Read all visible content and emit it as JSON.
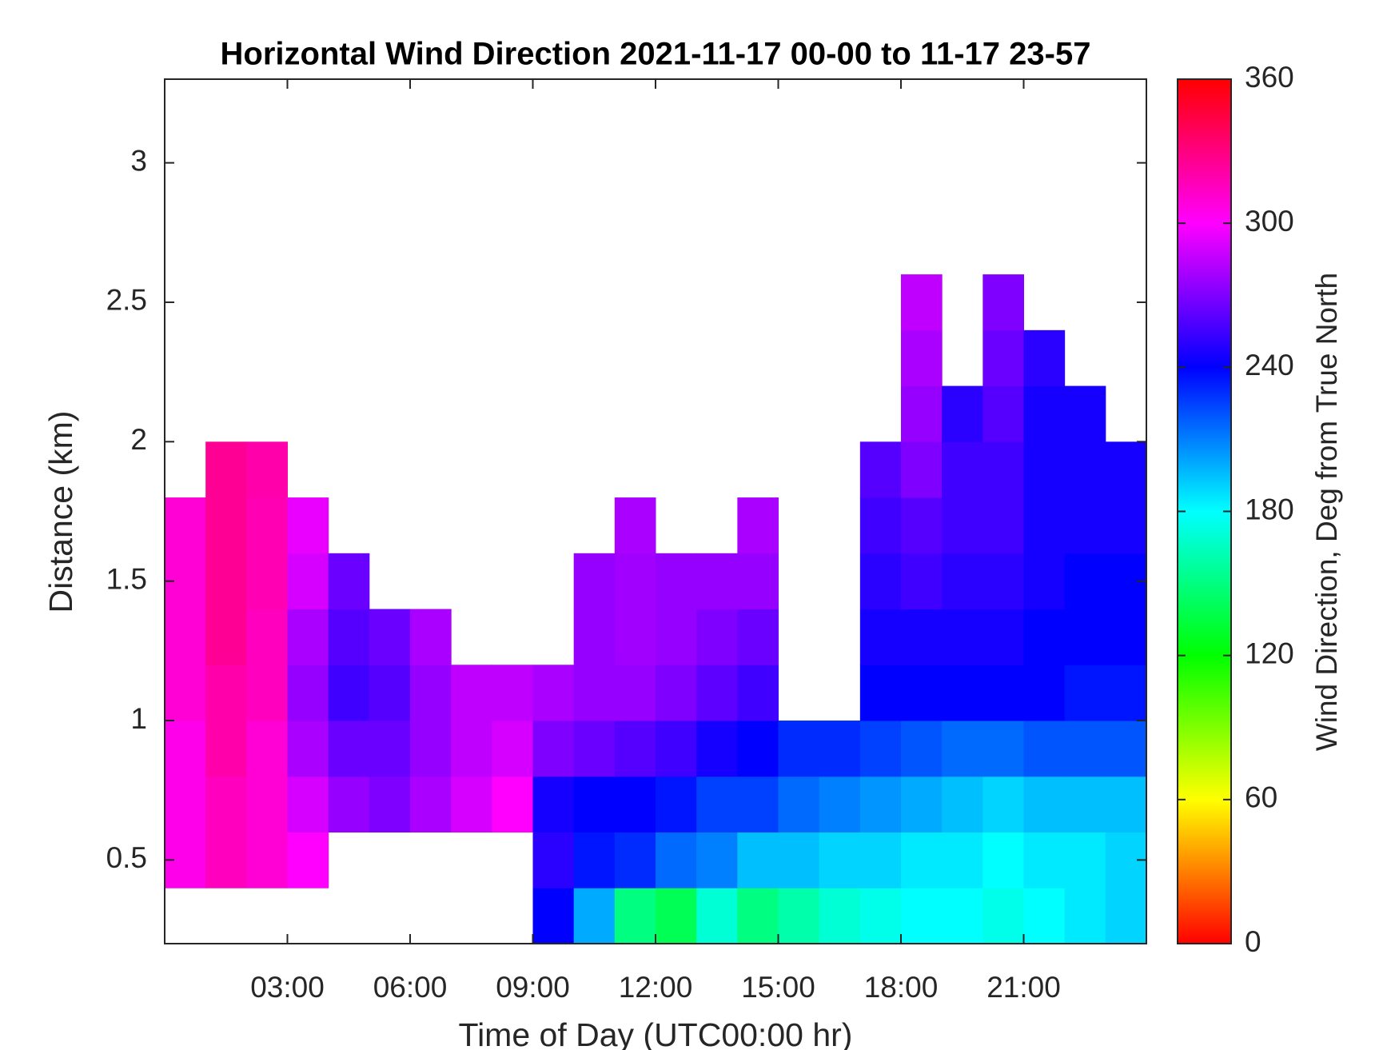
{
  "chart_data": {
    "type": "heatmap",
    "title": "Horizontal Wind Direction 2021-11-17 00-00 to 11-17 23-57",
    "xlabel": "Time of Day (UTC00:00 hr)",
    "ylabel": "Distance (km)",
    "colorbar_label": "Wind Direction, Deg from True North",
    "colormap": "hsv",
    "xlim": [
      0,
      24
    ],
    "xticks": [
      {
        "value": 3,
        "label": "03:00"
      },
      {
        "value": 6,
        "label": "06:00"
      },
      {
        "value": 9,
        "label": "09:00"
      },
      {
        "value": 12,
        "label": "12:00"
      },
      {
        "value": 15,
        "label": "15:00"
      },
      {
        "value": 18,
        "label": "18:00"
      },
      {
        "value": 21,
        "label": "21:00"
      }
    ],
    "ylim": [
      0.2,
      3.3
    ],
    "yticks": [
      0.5,
      1,
      1.5,
      2,
      2.5,
      3
    ],
    "clim": [
      0,
      360
    ],
    "cticks": [
      0,
      60,
      120,
      180,
      240,
      300,
      360
    ],
    "xbins": [
      0,
      1,
      2,
      3,
      4,
      5,
      6,
      7,
      8,
      9,
      10,
      11,
      12,
      13,
      14,
      15,
      16,
      17,
      18,
      19,
      20,
      21,
      22,
      23,
      24
    ],
    "ybins": [
      0.2,
      0.4,
      0.6,
      0.8,
      1.0,
      1.2,
      1.4,
      1.6,
      1.8,
      2.0,
      2.2,
      2.4,
      2.6
    ],
    "z": [
      [
        null,
        null,
        null,
        null,
        null,
        null,
        null,
        null,
        null,
        240,
        200,
        150,
        140,
        170,
        150,
        160,
        170,
        175,
        180,
        180,
        175,
        180,
        185,
        190
      ],
      [
        305,
        315,
        310,
        300,
        null,
        null,
        null,
        null,
        null,
        250,
        235,
        230,
        215,
        210,
        195,
        195,
        190,
        190,
        185,
        185,
        180,
        185,
        185,
        190
      ],
      [
        305,
        315,
        310,
        290,
        275,
        270,
        280,
        290,
        300,
        245,
        240,
        240,
        235,
        225,
        225,
        215,
        210,
        205,
        200,
        195,
        190,
        195,
        195,
        195
      ],
      [
        305,
        320,
        310,
        280,
        265,
        265,
        275,
        285,
        290,
        270,
        265,
        260,
        255,
        245,
        240,
        230,
        230,
        225,
        220,
        215,
        215,
        220,
        220,
        220
      ],
      [
        310,
        320,
        315,
        275,
        255,
        260,
        275,
        285,
        285,
        280,
        275,
        275,
        270,
        262,
        255,
        null,
        null,
        240,
        240,
        240,
        240,
        240,
        235,
        235
      ],
      [
        310,
        325,
        315,
        280,
        260,
        265,
        280,
        null,
        null,
        null,
        275,
        278,
        275,
        270,
        265,
        null,
        null,
        245,
        245,
        245,
        245,
        240,
        240,
        240
      ],
      [
        310,
        325,
        318,
        290,
        265,
        null,
        null,
        null,
        null,
        null,
        275,
        278,
        275,
        275,
        275,
        null,
        null,
        250,
        255,
        250,
        250,
        245,
        240,
        240
      ],
      [
        310,
        325,
        318,
        295,
        null,
        null,
        null,
        null,
        null,
        null,
        null,
        280,
        null,
        null,
        280,
        null,
        null,
        255,
        260,
        255,
        255,
        245,
        245,
        245
      ],
      [
        null,
        325,
        320,
        null,
        null,
        null,
        null,
        null,
        null,
        null,
        null,
        null,
        null,
        null,
        null,
        null,
        null,
        260,
        270,
        255,
        255,
        245,
        245,
        245
      ],
      [
        null,
        null,
        null,
        null,
        null,
        null,
        null,
        null,
        null,
        null,
        null,
        null,
        null,
        null,
        null,
        null,
        null,
        null,
        275,
        250,
        260,
        245,
        245,
        null
      ],
      [
        null,
        null,
        null,
        null,
        null,
        null,
        null,
        null,
        null,
        null,
        null,
        null,
        null,
        null,
        null,
        null,
        null,
        null,
        280,
        null,
        265,
        250,
        null,
        null
      ],
      [
        null,
        null,
        null,
        null,
        null,
        null,
        null,
        null,
        null,
        null,
        null,
        null,
        null,
        null,
        null,
        null,
        null,
        null,
        285,
        null,
        270,
        null,
        null,
        null
      ]
    ]
  }
}
